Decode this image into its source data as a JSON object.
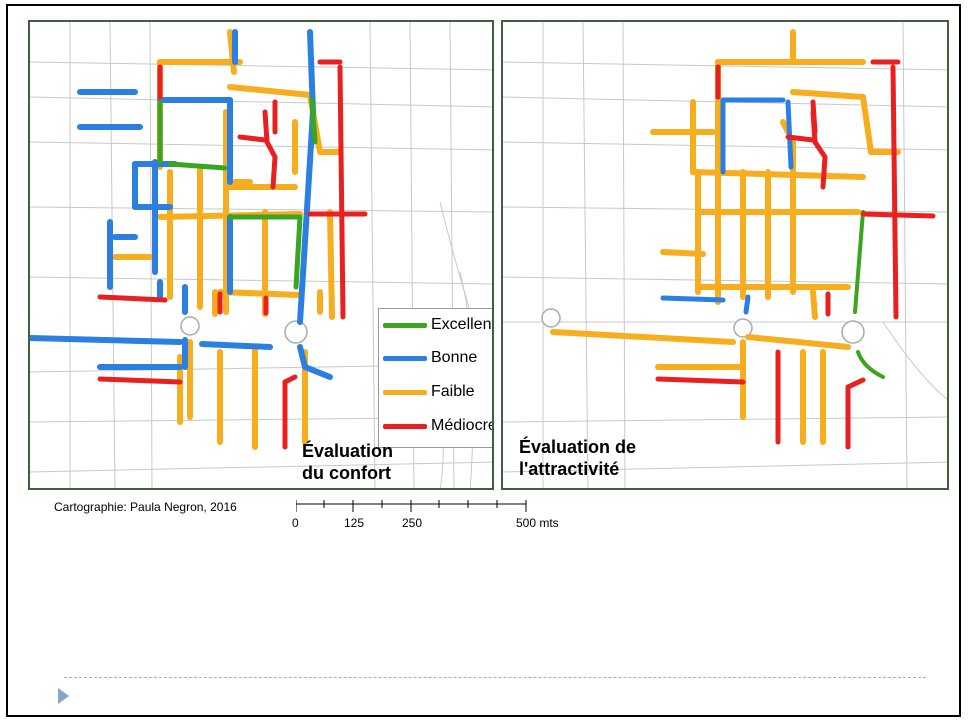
{
  "maps": [
    {
      "title_line1": "Évaluation",
      "title_line2": "du confort"
    },
    {
      "title_line1": "Évaluation de",
      "title_line2": "l'attractivité"
    }
  ],
  "legend": {
    "items": [
      {
        "label": "Excellent",
        "color": "#3aa51f"
      },
      {
        "label": "Bonne",
        "color": "#2a7fe0"
      },
      {
        "label": "Faible",
        "color": "#f7ad1d"
      },
      {
        "label": "Médiocre",
        "color": "#e8201f"
      }
    ]
  },
  "credit": "Cartographie: Paula Negron, 2016",
  "scale": {
    "labels": [
      "0",
      "125",
      "250",
      "500 mts"
    ]
  },
  "colors": {
    "excellent": "#3aa51f",
    "bonne": "#2a7fe0",
    "faible": "#f7ad1d",
    "mediocre": "#e8201f",
    "base_streets": "#bdbdbd",
    "map_frame": "#3f5f3f"
  }
}
